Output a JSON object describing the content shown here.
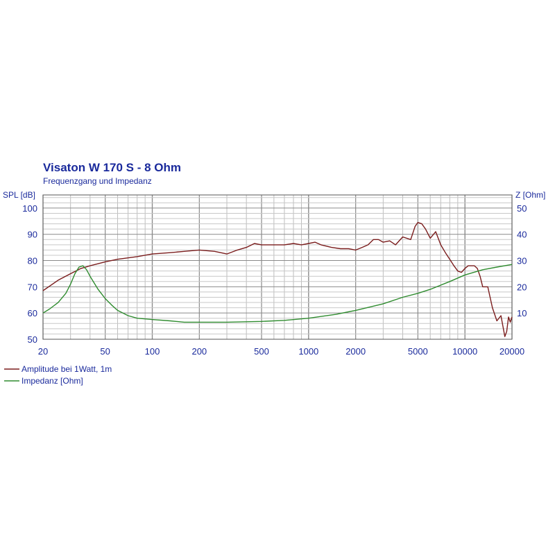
{
  "chart_data": {
    "type": "line",
    "title": "Visaton W 170 S - 8 Ohm",
    "subtitle": "Frequenzgang und Impedanz",
    "ylabel_left": "SPL [dB]",
    "ylabel_right": "Z [Ohm]",
    "x_scale": "log",
    "xlim": [
      20,
      20000
    ],
    "ylim_left": [
      50,
      105
    ],
    "ylim_right": [
      0,
      55
    ],
    "x_ticks": [
      20,
      50,
      100,
      200,
      500,
      1000,
      2000,
      5000,
      10000,
      20000
    ],
    "y_ticks_left": [
      50,
      60,
      70,
      80,
      90,
      100
    ],
    "y_ticks_right": [
      10,
      20,
      30,
      40,
      50
    ],
    "grid": true,
    "legend": "bottom-left",
    "series": [
      {
        "name": "Amplitude bei 1Watt, 1m",
        "axis": "left",
        "color": "#7a1c1c",
        "x": [
          20,
          25,
          30,
          35,
          40,
          50,
          60,
          80,
          100,
          130,
          160,
          200,
          250,
          300,
          350,
          400,
          450,
          500,
          600,
          700,
          800,
          900,
          1000,
          1100,
          1200,
          1400,
          1600,
          1800,
          2000,
          2200,
          2400,
          2600,
          2800,
          3000,
          3300,
          3600,
          4000,
          4500,
          4800,
          5000,
          5300,
          5600,
          6000,
          6500,
          7000,
          7500,
          8000,
          8500,
          9000,
          9500,
          10000,
          10500,
          11000,
          11500,
          12000,
          12500,
          13000,
          14000,
          15000,
          16000,
          17000,
          17500,
          18000,
          18500,
          19000,
          19500,
          20000
        ],
        "values": [
          68.5,
          72.5,
          75,
          77,
          78,
          79.5,
          80.5,
          81.5,
          82.5,
          83,
          83.5,
          84,
          83.5,
          82.5,
          84,
          85,
          86.5,
          86,
          86,
          86,
          86.5,
          86,
          86.5,
          87,
          86,
          85,
          84.5,
          84.5,
          84,
          85,
          86,
          88,
          88,
          87,
          87.5,
          86,
          89,
          88,
          93,
          94.5,
          94,
          92,
          88.5,
          91,
          86,
          83,
          80.5,
          78,
          76,
          75.5,
          77,
          78,
          78,
          78,
          77,
          74,
          70,
          70,
          62,
          57,
          59,
          55,
          51,
          53,
          58.5,
          56.5,
          58.5
        ]
      },
      {
        "name": "Impedanz [Ohm]",
        "axis": "right",
        "color": "#2e8b2e",
        "x": [
          20,
          22,
          25,
          28,
          30,
          32,
          34,
          36,
          38,
          40,
          45,
          50,
          55,
          60,
          70,
          80,
          100,
          130,
          160,
          200,
          300,
          500,
          700,
          1000,
          1500,
          2000,
          3000,
          4000,
          5000,
          6000,
          8000,
          10000,
          13000,
          16000,
          20000
        ],
        "values": [
          10,
          11.5,
          14,
          17.5,
          21,
          25,
          27.5,
          28,
          26.5,
          24,
          19,
          15.5,
          13,
          11,
          9,
          8,
          7.5,
          7,
          6.5,
          6.5,
          6.5,
          6.8,
          7.2,
          8,
          9.5,
          11,
          13.5,
          16,
          17.5,
          19,
          22,
          24.5,
          26.5,
          27.5,
          28.5
        ]
      }
    ]
  }
}
